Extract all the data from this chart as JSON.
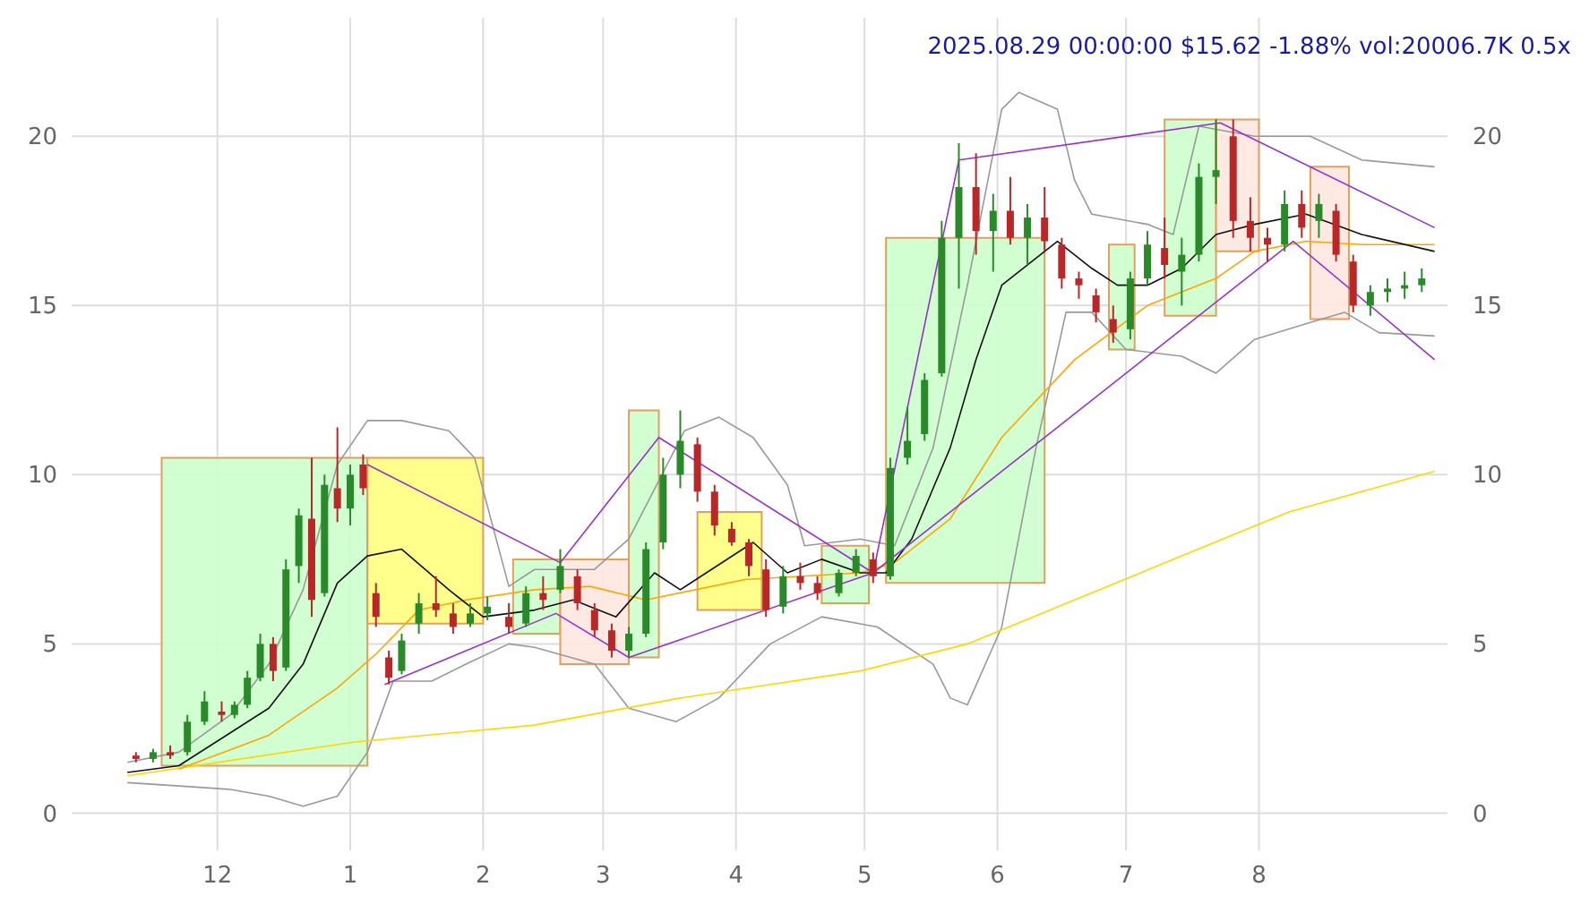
{
  "chart_data": {
    "type": "candlestick",
    "title": "2025.08.29 00:00:00 $15.62 -1.88% vol:20006.7K 0.5x",
    "xlim": [
      "2024-10-28",
      "2025-09-14"
    ],
    "xticks": [
      {
        "value": "2024-12-01",
        "label": "12"
      },
      {
        "value": "2025-01-01",
        "label": "1"
      },
      {
        "value": "2025-02-01",
        "label": "2"
      },
      {
        "value": "2025-03-01",
        "label": "3"
      },
      {
        "value": "2025-04-01",
        "label": "4"
      },
      {
        "value": "2025-05-01",
        "label": "5"
      },
      {
        "value": "2025-06-01",
        "label": "6"
      },
      {
        "value": "2025-07-01",
        "label": "7"
      },
      {
        "value": "2025-08-01",
        "label": "8"
      }
    ],
    "ylim": [
      -1.1,
      23.5
    ],
    "yticks": [
      0,
      5,
      10,
      15,
      20
    ],
    "y2lim": [
      -1.1,
      23.5
    ],
    "y2ticks": [
      0,
      5,
      10,
      15,
      20
    ],
    "grid": true,
    "colors": [
      "#b82828",
      "#2a8a2a",
      "#b82828",
      "#2a8a2a",
      "#2a8a2a",
      "#b82828",
      "#2a8a2a",
      "#2a8a2a",
      "#2a8a2a",
      "#b82828",
      "#2a8a2a",
      "#2a8a2a",
      "#b82828",
      "#2a8a2a",
      "#b82828",
      "#2a8a2a",
      "#b82828",
      "#b82828",
      "#b82828",
      "#2a8a2a",
      "#2a8a2a",
      "#b82828",
      "#b82828",
      "#2a8a2a",
      "#2a8a2a",
      "#b82828",
      "#2a8a2a",
      "#b82828",
      "#2a8a2a",
      "#b82828",
      "#b82828",
      "#b82828",
      "#2a8a2a",
      "#2a8a2a",
      "#2a8a2a",
      "#2a8a2a",
      "#b82828",
      "#b82828",
      "#b82828",
      "#b82828",
      "#b82828",
      "#2a8a2a",
      "#b82828",
      "#b82828",
      "#2a8a2a",
      "#2a8a2a",
      "#b82828",
      "#2a8a2a",
      "#2a8a2a",
      "#2a8a2a",
      "#2a8a2a",
      "#2a8a2a",
      "#b82828",
      "#2a8a2a",
      "#b82828",
      "#2a8a2a",
      "#b82828",
      "#b82828",
      "#b82828",
      "#b82828",
      "#b82828",
      "#2a8a2a",
      "#2a8a2a",
      "#b82828",
      "#2a8a2a",
      "#2a8a2a",
      "#2a8a2a",
      "#b82828",
      "#b82828",
      "#b82828",
      "#2a8a2a",
      "#b82828",
      "#2a8a2a",
      "#b82828",
      "#b82828",
      "#2a8a2a",
      "#2a8a2a",
      "#2a8a2a",
      "#2a8a2a"
    ],
    "x": [
      "2024-11-12",
      "2024-11-16",
      "2024-11-20",
      "2024-11-24",
      "2024-11-28",
      "2024-12-02",
      "2024-12-05",
      "2024-12-08",
      "2024-12-11",
      "2024-12-14",
      "2024-12-17",
      "2024-12-20",
      "2024-12-23",
      "2024-12-26",
      "2024-12-29",
      "2025-01-01",
      "2025-01-04",
      "2025-01-07",
      "2025-01-10",
      "2025-01-13",
      "2025-01-17",
      "2025-01-21",
      "2025-01-25",
      "2025-01-29",
      "2025-02-02",
      "2025-02-07",
      "2025-02-11",
      "2025-02-15",
      "2025-02-19",
      "2025-02-23",
      "2025-02-27",
      "2025-03-03",
      "2025-03-07",
      "2025-03-11",
      "2025-03-15",
      "2025-03-19",
      "2025-03-23",
      "2025-03-27",
      "2025-03-31",
      "2025-04-04",
      "2025-04-08",
      "2025-04-12",
      "2025-04-16",
      "2025-04-20",
      "2025-04-25",
      "2025-04-29",
      "2025-05-03",
      "2025-05-07",
      "2025-05-11",
      "2025-05-15",
      "2025-05-19",
      "2025-05-23",
      "2025-05-27",
      "2025-05-31",
      "2025-06-04",
      "2025-06-08",
      "2025-06-12",
      "2025-06-16",
      "2025-06-20",
      "2025-06-24",
      "2025-06-28",
      "2025-07-02",
      "2025-07-06",
      "2025-07-10",
      "2025-07-14",
      "2025-07-18",
      "2025-07-22",
      "2025-07-26",
      "2025-07-30",
      "2025-08-03",
      "2025-08-07",
      "2025-08-11",
      "2025-08-15",
      "2025-08-19",
      "2025-08-23",
      "2025-08-27",
      "2025-08-31",
      "2025-09-04",
      "2025-09-08"
    ],
    "ohlc": [
      [
        1.7,
        1.8,
        1.5,
        1.6
      ],
      [
        1.6,
        1.9,
        1.5,
        1.8
      ],
      [
        1.8,
        2.0,
        1.6,
        1.7
      ],
      [
        1.8,
        2.9,
        1.7,
        2.7
      ],
      [
        2.7,
        3.6,
        2.6,
        3.3
      ],
      [
        3.0,
        3.3,
        2.7,
        2.9
      ],
      [
        2.9,
        3.3,
        2.8,
        3.2
      ],
      [
        3.2,
        4.2,
        3.1,
        4.0
      ],
      [
        4.0,
        5.3,
        3.9,
        5.0
      ],
      [
        5.0,
        5.2,
        3.9,
        4.2
      ],
      [
        4.3,
        7.5,
        4.2,
        7.2
      ],
      [
        7.3,
        9.0,
        6.8,
        8.8
      ],
      [
        8.7,
        10.5,
        5.8,
        6.3
      ],
      [
        6.5,
        10.0,
        6.4,
        9.7
      ],
      [
        9.6,
        11.4,
        8.6,
        9.0
      ],
      [
        9.0,
        10.3,
        8.5,
        10.0
      ],
      [
        10.3,
        10.6,
        9.4,
        9.6
      ],
      [
        6.5,
        6.8,
        5.5,
        5.8
      ],
      [
        4.6,
        4.8,
        3.8,
        4.0
      ],
      [
        4.2,
        5.3,
        4.1,
        5.1
      ],
      [
        5.6,
        6.5,
        5.3,
        6.2
      ],
      [
        6.2,
        7.0,
        5.8,
        6.0
      ],
      [
        5.9,
        6.2,
        5.3,
        5.5
      ],
      [
        5.6,
        6.2,
        5.5,
        5.9
      ],
      [
        5.9,
        6.4,
        5.7,
        6.1
      ],
      [
        5.8,
        6.2,
        5.3,
        5.5
      ],
      [
        5.6,
        6.7,
        5.5,
        6.5
      ],
      [
        6.5,
        7.0,
        6.0,
        6.3
      ],
      [
        6.6,
        7.8,
        6.5,
        7.3
      ],
      [
        7.0,
        7.2,
        6.0,
        6.2
      ],
      [
        6.0,
        6.2,
        5.2,
        5.4
      ],
      [
        5.4,
        5.6,
        4.6,
        4.8
      ],
      [
        4.8,
        5.5,
        4.6,
        5.3
      ],
      [
        5.3,
        8.0,
        5.2,
        7.8
      ],
      [
        8.0,
        10.5,
        7.8,
        10.0
      ],
      [
        10.0,
        11.9,
        9.6,
        11.0
      ],
      [
        10.9,
        11.1,
        9.2,
        9.5
      ],
      [
        9.5,
        9.7,
        8.2,
        8.5
      ],
      [
        8.4,
        8.6,
        7.9,
        8.0
      ],
      [
        8.0,
        8.1,
        7.0,
        7.3
      ],
      [
        7.2,
        7.5,
        5.8,
        6.0
      ],
      [
        6.1,
        7.3,
        5.9,
        7.0
      ],
      [
        7.0,
        7.4,
        6.6,
        6.8
      ],
      [
        6.8,
        7.0,
        6.3,
        6.5
      ],
      [
        6.5,
        7.2,
        6.4,
        7.1
      ],
      [
        7.1,
        7.8,
        7.0,
        7.6
      ],
      [
        7.5,
        7.7,
        6.8,
        7.0
      ],
      [
        7.0,
        10.5,
        6.9,
        10.2
      ],
      [
        10.5,
        12.0,
        10.3,
        11.0
      ],
      [
        11.2,
        13.0,
        11.0,
        12.8
      ],
      [
        13.0,
        17.5,
        12.9,
        17.0
      ],
      [
        17.0,
        19.8,
        15.5,
        18.5
      ],
      [
        18.5,
        19.5,
        16.5,
        17.2
      ],
      [
        17.2,
        18.3,
        16.0,
        17.8
      ],
      [
        17.8,
        18.8,
        16.8,
        17.0
      ],
      [
        17.0,
        18.0,
        16.2,
        17.6
      ],
      [
        17.6,
        18.5,
        16.6,
        16.9
      ],
      [
        16.8,
        17.0,
        15.5,
        15.8
      ],
      [
        15.8,
        16.0,
        15.2,
        15.6
      ],
      [
        15.3,
        15.5,
        14.5,
        14.8
      ],
      [
        14.6,
        15.0,
        13.9,
        14.2
      ],
      [
        14.3,
        16.0,
        14.0,
        15.8
      ],
      [
        15.8,
        17.2,
        15.6,
        16.8
      ],
      [
        16.7,
        17.6,
        15.8,
        16.2
      ],
      [
        16.0,
        17.0,
        15.0,
        16.5
      ],
      [
        16.5,
        19.2,
        16.3,
        18.8
      ],
      [
        18.8,
        20.5,
        18.0,
        19.0
      ],
      [
        20.0,
        20.5,
        17.0,
        17.5
      ],
      [
        17.5,
        18.2,
        16.6,
        17.0
      ],
      [
        17.0,
        17.3,
        16.3,
        16.8
      ],
      [
        16.8,
        18.4,
        16.6,
        18.0
      ],
      [
        18.0,
        18.4,
        17.0,
        17.3
      ],
      [
        17.5,
        18.3,
        17.0,
        18.0
      ],
      [
        17.8,
        18.0,
        16.3,
        16.5
      ],
      [
        16.3,
        16.5,
        14.8,
        15.0
      ],
      [
        15.0,
        15.6,
        14.7,
        15.4
      ],
      [
        15.4,
        15.8,
        15.1,
        15.5
      ],
      [
        15.5,
        16.0,
        15.2,
        15.6
      ],
      [
        15.6,
        16.1,
        15.4,
        15.8
      ]
    ],
    "series": [
      {
        "type": "area",
        "color": "#ccffcc",
        "x": [
          "2024-11-18",
          "2024-11-18",
          "2025-01-05",
          "2025-01-05"
        ],
        "values": [
          1.4,
          10.5,
          10.5,
          1.4
        ]
      },
      {
        "type": "area",
        "color": "#ffff80",
        "x": [
          "2025-01-05",
          "2025-01-05",
          "2025-02-01",
          "2025-02-01"
        ],
        "values": [
          5.6,
          10.5,
          10.5,
          5.6
        ]
      },
      {
        "type": "area",
        "color": "#ccffcc",
        "x": [
          "2025-02-08",
          "2025-02-08",
          "2025-02-19",
          "2025-02-19"
        ],
        "values": [
          5.3,
          7.5,
          7.5,
          5.3
        ]
      },
      {
        "type": "area",
        "color": "#ffe8e0",
        "x": [
          "2025-02-19",
          "2025-02-19",
          "2025-03-07",
          "2025-03-07"
        ],
        "values": [
          4.4,
          7.5,
          7.5,
          4.4
        ]
      },
      {
        "type": "area",
        "color": "#ccffcc",
        "x": [
          "2025-03-07",
          "2025-03-07",
          "2025-03-14",
          "2025-03-14"
        ],
        "values": [
          4.6,
          11.9,
          11.9,
          4.6
        ]
      },
      {
        "type": "area",
        "color": "#ffff80",
        "x": [
          "2025-03-23",
          "2025-03-23",
          "2025-04-07",
          "2025-04-07"
        ],
        "values": [
          6.0,
          8.9,
          8.9,
          6.0
        ]
      },
      {
        "type": "area",
        "color": "#ccffcc",
        "x": [
          "2025-04-21",
          "2025-04-21",
          "2025-05-02",
          "2025-05-02"
        ],
        "values": [
          6.2,
          7.9,
          7.9,
          6.2
        ]
      },
      {
        "type": "area",
        "color": "#ccffcc",
        "x": [
          "2025-05-06",
          "2025-05-06",
          "2025-06-12",
          "2025-06-12"
        ],
        "values": [
          6.8,
          17.0,
          17.0,
          6.8
        ]
      },
      {
        "type": "area",
        "color": "#ccffcc",
        "x": [
          "2025-06-27",
          "2025-06-27",
          "2025-07-03",
          "2025-07-03"
        ],
        "values": [
          13.7,
          16.8,
          16.8,
          13.7
        ]
      },
      {
        "type": "area",
        "color": "#ccffcc",
        "x": [
          "2025-07-10",
          "2025-07-10",
          "2025-07-22",
          "2025-07-22"
        ],
        "values": [
          14.7,
          20.5,
          20.5,
          14.7
        ]
      },
      {
        "type": "area",
        "color": "#ffe8e0",
        "x": [
          "2025-07-22",
          "2025-07-22",
          "2025-08-01",
          "2025-08-01"
        ],
        "values": [
          16.6,
          20.5,
          20.5,
          16.6
        ]
      },
      {
        "type": "area",
        "color": "#ffe8e0",
        "x": [
          "2025-08-13",
          "2025-08-13",
          "2025-08-22",
          "2025-08-22"
        ],
        "values": [
          14.6,
          19.1,
          19.1,
          14.6
        ]
      },
      {
        "type": "line",
        "color": "#999999",
        "x": [
          "2024-11-10",
          "2024-11-22",
          "2024-12-04",
          "2024-12-13",
          "2024-12-21",
          "2024-12-29",
          "2025-01-05",
          "2025-01-13",
          "2025-01-24",
          "2025-01-30",
          "2025-02-07",
          "2025-02-13",
          "2025-02-27",
          "2025-03-07",
          "2025-03-20",
          "2025-03-28",
          "2025-04-05",
          "2025-04-13",
          "2025-04-17",
          "2025-04-30",
          "2025-05-08",
          "2025-05-17",
          "2025-05-25",
          "2025-06-02",
          "2025-06-06",
          "2025-06-15",
          "2025-06-19",
          "2025-06-23",
          "2025-07-06",
          "2025-07-12",
          "2025-07-18",
          "2025-07-31",
          "2025-08-13",
          "2025-08-25",
          "2025-09-11"
        ],
        "values": [
          1.5,
          1.8,
          2.9,
          4.4,
          6.6,
          10.3,
          11.6,
          11.6,
          11.3,
          10.5,
          6.7,
          7.2,
          7.2,
          8.1,
          11.3,
          11.7,
          11.1,
          9.7,
          7.9,
          8.1,
          7.9,
          10.8,
          15.6,
          20.8,
          21.3,
          20.8,
          18.7,
          17.7,
          17.4,
          17.1,
          20.3,
          20.0,
          20.0,
          19.3,
          19.1
        ]
      },
      {
        "type": "line",
        "color": "#999999",
        "x": [
          "2024-11-10",
          "2024-11-22",
          "2024-12-04",
          "2024-12-13",
          "2024-12-21",
          "2024-12-29",
          "2025-01-05",
          "2025-01-11",
          "2025-01-20",
          "2025-01-28",
          "2025-02-07",
          "2025-02-13",
          "2025-02-27",
          "2025-03-07",
          "2025-03-18",
          "2025-03-28",
          "2025-04-09",
          "2025-04-21",
          "2025-05-04",
          "2025-05-17",
          "2025-05-21",
          "2025-05-25",
          "2025-06-02",
          "2025-06-10",
          "2025-06-17",
          "2025-06-23",
          "2025-07-01",
          "2025-07-14",
          "2025-07-22",
          "2025-07-31",
          "2025-08-13",
          "2025-08-21",
          "2025-08-29",
          "2025-09-11"
        ],
        "values": [
          0.9,
          0.8,
          0.7,
          0.5,
          0.2,
          0.5,
          1.8,
          3.9,
          3.9,
          4.4,
          5.0,
          4.9,
          4.4,
          3.1,
          2.7,
          3.4,
          5.0,
          5.8,
          5.5,
          4.4,
          3.4,
          3.2,
          5.5,
          10.8,
          14.8,
          14.8,
          13.7,
          13.5,
          13.0,
          14.0,
          14.5,
          14.8,
          14.2,
          14.1
        ]
      },
      {
        "type": "line",
        "color": "#ffd700",
        "x": [
          "2024-11-10",
          "2025-01-02",
          "2025-02-13",
          "2025-03-19",
          "2025-04-30",
          "2025-05-25",
          "2025-06-19",
          "2025-07-14",
          "2025-08-08",
          "2025-09-11"
        ],
        "values": [
          1.1,
          2.1,
          2.6,
          3.4,
          4.2,
          5.0,
          6.3,
          7.6,
          8.9,
          10.1
        ]
      },
      {
        "type": "line",
        "color": "#ffa500",
        "x": [
          "2024-11-22",
          "2024-12-13",
          "2024-12-29",
          "2025-01-07",
          "2025-01-17",
          "2025-01-28",
          "2025-02-13",
          "2025-02-26",
          "2025-03-11",
          "2025-04-03",
          "2025-04-30",
          "2025-05-08",
          "2025-05-21",
          "2025-06-02",
          "2025-06-19",
          "2025-07-06",
          "2025-07-22",
          "2025-07-31",
          "2025-08-12",
          "2025-08-25",
          "2025-09-11"
        ],
        "values": [
          1.3,
          2.3,
          3.7,
          4.7,
          6.0,
          6.3,
          6.6,
          6.7,
          6.3,
          6.9,
          7.1,
          7.4,
          8.7,
          11.1,
          13.4,
          15.0,
          15.8,
          16.6,
          16.9,
          16.8,
          16.8
        ]
      },
      {
        "type": "line",
        "color": "#111111",
        "x": [
          "2024-11-10",
          "2024-11-22",
          "2024-12-13",
          "2024-12-21",
          "2024-12-29",
          "2025-01-05",
          "2025-01-13",
          "2025-01-24",
          "2025-02-01",
          "2025-02-13",
          "2025-02-22",
          "2025-03-04",
          "2025-03-13",
          "2025-03-19",
          "2025-04-05",
          "2025-04-13",
          "2025-04-21",
          "2025-04-30",
          "2025-05-06",
          "2025-05-12",
          "2025-05-21",
          "2025-05-27",
          "2025-06-02",
          "2025-06-15",
          "2025-06-23",
          "2025-06-29",
          "2025-07-06",
          "2025-07-14",
          "2025-07-22",
          "2025-07-31",
          "2025-08-12",
          "2025-08-25",
          "2025-09-11"
        ],
        "values": [
          1.2,
          1.4,
          3.1,
          4.4,
          6.8,
          7.6,
          7.8,
          6.6,
          5.8,
          6.0,
          6.3,
          5.8,
          7.1,
          6.6,
          8.0,
          7.1,
          7.5,
          7.1,
          7.1,
          8.1,
          10.8,
          13.4,
          15.6,
          16.9,
          16.1,
          15.6,
          15.6,
          16.1,
          17.1,
          17.4,
          17.7,
          17.1,
          16.6
        ]
      },
      {
        "type": "line",
        "color": "#9932cc",
        "x": [
          "2025-01-05",
          "2025-02-19",
          "2025-03-14",
          "2025-05-03",
          "2025-05-23",
          "2025-07-23",
          "2025-09-11"
        ],
        "values": [
          10.3,
          7.4,
          11.1,
          7.1,
          19.3,
          20.4,
          17.3
        ]
      },
      {
        "type": "line",
        "color": "#9932cc",
        "x": [
          "2025-01-09",
          "2025-02-18",
          "2025-03-07",
          "2025-05-03",
          "2025-08-09",
          "2025-09-11"
        ],
        "values": [
          3.8,
          5.9,
          4.6,
          7.1,
          16.9,
          13.4
        ]
      }
    ]
  }
}
